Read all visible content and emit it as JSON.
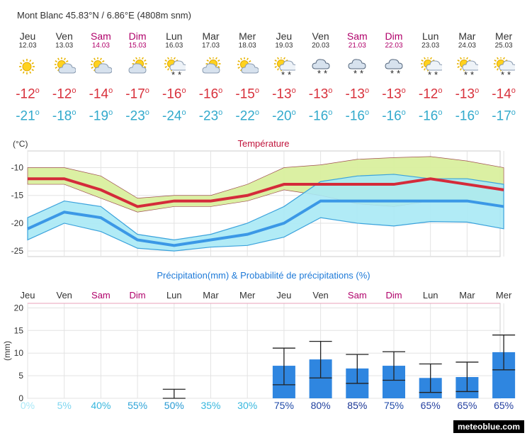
{
  "location": "Mont Blanc  45.83°N / 6.86°E (4808m snm)",
  "brand": "meteoblue.com",
  "colors": {
    "weekday": "#333333",
    "weekend": "#b0006a",
    "tmax": "#d8313c",
    "tmin": "#33aacc",
    "precip_bar": "#2f86e0"
  },
  "days": [
    {
      "name": "Jeu",
      "date": "12.03",
      "weekend": false,
      "icon": "sun-icon",
      "tmax": "-12",
      "tmin": "-21"
    },
    {
      "name": "Ven",
      "date": "13.03",
      "weekend": false,
      "icon": "sun-cloud-icon",
      "tmax": "-12",
      "tmin": "-18"
    },
    {
      "name": "Sam",
      "date": "14.03",
      "weekend": true,
      "icon": "sun-cloud-icon",
      "tmax": "-14",
      "tmin": "-19"
    },
    {
      "name": "Dim",
      "date": "15.03",
      "weekend": true,
      "icon": "cloud-sun-icon",
      "tmax": "-17",
      "tmin": "-23"
    },
    {
      "name": "Lun",
      "date": "16.03",
      "weekend": false,
      "icon": "sun-snow-icon",
      "tmax": "-16",
      "tmin": "-24"
    },
    {
      "name": "Mar",
      "date": "17.03",
      "weekend": false,
      "icon": "cloud-sun-icon",
      "tmax": "-16",
      "tmin": "-23"
    },
    {
      "name": "Mer",
      "date": "18.03",
      "weekend": false,
      "icon": "sun-cloud-icon",
      "tmax": "-15",
      "tmin": "-22"
    },
    {
      "name": "Jeu",
      "date": "19.03",
      "weekend": false,
      "icon": "sun-snow-icon",
      "tmax": "-13",
      "tmin": "-20"
    },
    {
      "name": "Ven",
      "date": "20.03",
      "weekend": false,
      "icon": "cloud-snow-icon",
      "tmax": "-13",
      "tmin": "-16"
    },
    {
      "name": "Sam",
      "date": "21.03",
      "weekend": true,
      "icon": "cloud-snow-icon",
      "tmax": "-13",
      "tmin": "-16"
    },
    {
      "name": "Dim",
      "date": "22.03",
      "weekend": true,
      "icon": "cloud-snow-icon",
      "tmax": "-13",
      "tmin": "-16"
    },
    {
      "name": "Lun",
      "date": "23.03",
      "weekend": false,
      "icon": "sun-snow-icon",
      "tmax": "-12",
      "tmin": "-16"
    },
    {
      "name": "Mar",
      "date": "24.03",
      "weekend": false,
      "icon": "sun-snow-icon",
      "tmax": "-13",
      "tmin": "-16"
    },
    {
      "name": "Mer",
      "date": "25.03",
      "weekend": false,
      "icon": "sun-snow-icon",
      "tmax": "-14",
      "tmin": "-17"
    }
  ],
  "chart_data": [
    {
      "type": "line",
      "title": "Température",
      "ylabel": "(°C)",
      "ylim": [
        -26,
        -7
      ],
      "yticks": [
        -25,
        -20,
        -15,
        -10
      ],
      "grid": true,
      "x": [
        "Jeu 12.03",
        "Ven 13.03",
        "Sam 14.03",
        "Dim 15.03",
        "Lun 16.03",
        "Mar 17.03",
        "Mer 18.03",
        "Jeu 19.03",
        "Ven 20.03",
        "Sam 21.03",
        "Dim 22.03",
        "Lun 23.03",
        "Mar 24.03",
        "Mer 25.03"
      ],
      "series": [
        {
          "values": [
            -12,
            -12,
            -14,
            -17,
            -16,
            -16,
            -15,
            -13,
            -13,
            -13,
            -13,
            -12,
            -13,
            -14
          ],
          "band_high": [
            -10,
            -10,
            -11.5,
            -15.5,
            -15,
            -15,
            -13,
            -10,
            -9.5,
            -8.5,
            -8.2,
            -8,
            -8.8,
            -10
          ],
          "band_low": [
            -13,
            -13,
            -15.5,
            -18,
            -17,
            -17,
            -16,
            -14,
            -15,
            -16.5,
            -17,
            -16,
            -16,
            -17
          ]
        },
        {
          "values": [
            -21,
            -18,
            -19,
            -23,
            -24,
            -23,
            -22,
            -20,
            -16,
            -16,
            -16,
            -16,
            -16,
            -17
          ],
          "band_high": [
            -19,
            -16,
            -17,
            -22,
            -23,
            -22,
            -20,
            -17,
            -12.5,
            -11.5,
            -11.2,
            -12,
            -12,
            -13
          ],
          "band_low": [
            -23,
            -20,
            -21.5,
            -24.5,
            -25,
            -24.3,
            -24,
            -22.5,
            -19,
            -20,
            -20.5,
            -19.7,
            -19.8,
            -21
          ]
        }
      ]
    },
    {
      "type": "bar",
      "title": "Précipitation(mm) & Probabilité de précipitations (%)",
      "ylabel": "(mm)",
      "ylim": [
        0,
        21
      ],
      "yticks": [
        0,
        5,
        10,
        15,
        20
      ],
      "grid": true,
      "categories": [
        "Jeu",
        "Ven",
        "Sam",
        "Dim",
        "Lun",
        "Mar",
        "Mer",
        "Jeu",
        "Ven",
        "Sam",
        "Dim",
        "Lun",
        "Mar",
        "Mer"
      ],
      "values": [
        0,
        0,
        0,
        0,
        0,
        0,
        0,
        7.2,
        8.6,
        6.6,
        7.2,
        4.5,
        4.7,
        10.2
      ],
      "range_low": [
        null,
        null,
        null,
        null,
        0,
        null,
        null,
        3,
        4.5,
        3.3,
        4,
        1.3,
        1.5,
        6.3
      ],
      "range_high": [
        null,
        null,
        null,
        null,
        2,
        null,
        null,
        11.1,
        12.6,
        9.7,
        10.3,
        7.6,
        8,
        14
      ],
      "probability": [
        "0%",
        "5%",
        "40%",
        "55%",
        "50%",
        "35%",
        "30%",
        "75%",
        "80%",
        "85%",
        "75%",
        "65%",
        "65%",
        "65%"
      ],
      "probability_colors": [
        "#a8e8f8",
        "#7fd6f0",
        "#37b7de",
        "#2fa4d8",
        "#279ad3",
        "#37b7de",
        "#37b7de",
        "#1f4aa8",
        "#1f3f9e",
        "#1a3594",
        "#1f4aa8",
        "#2540a0",
        "#2540a0",
        "#2540a0"
      ]
    }
  ]
}
